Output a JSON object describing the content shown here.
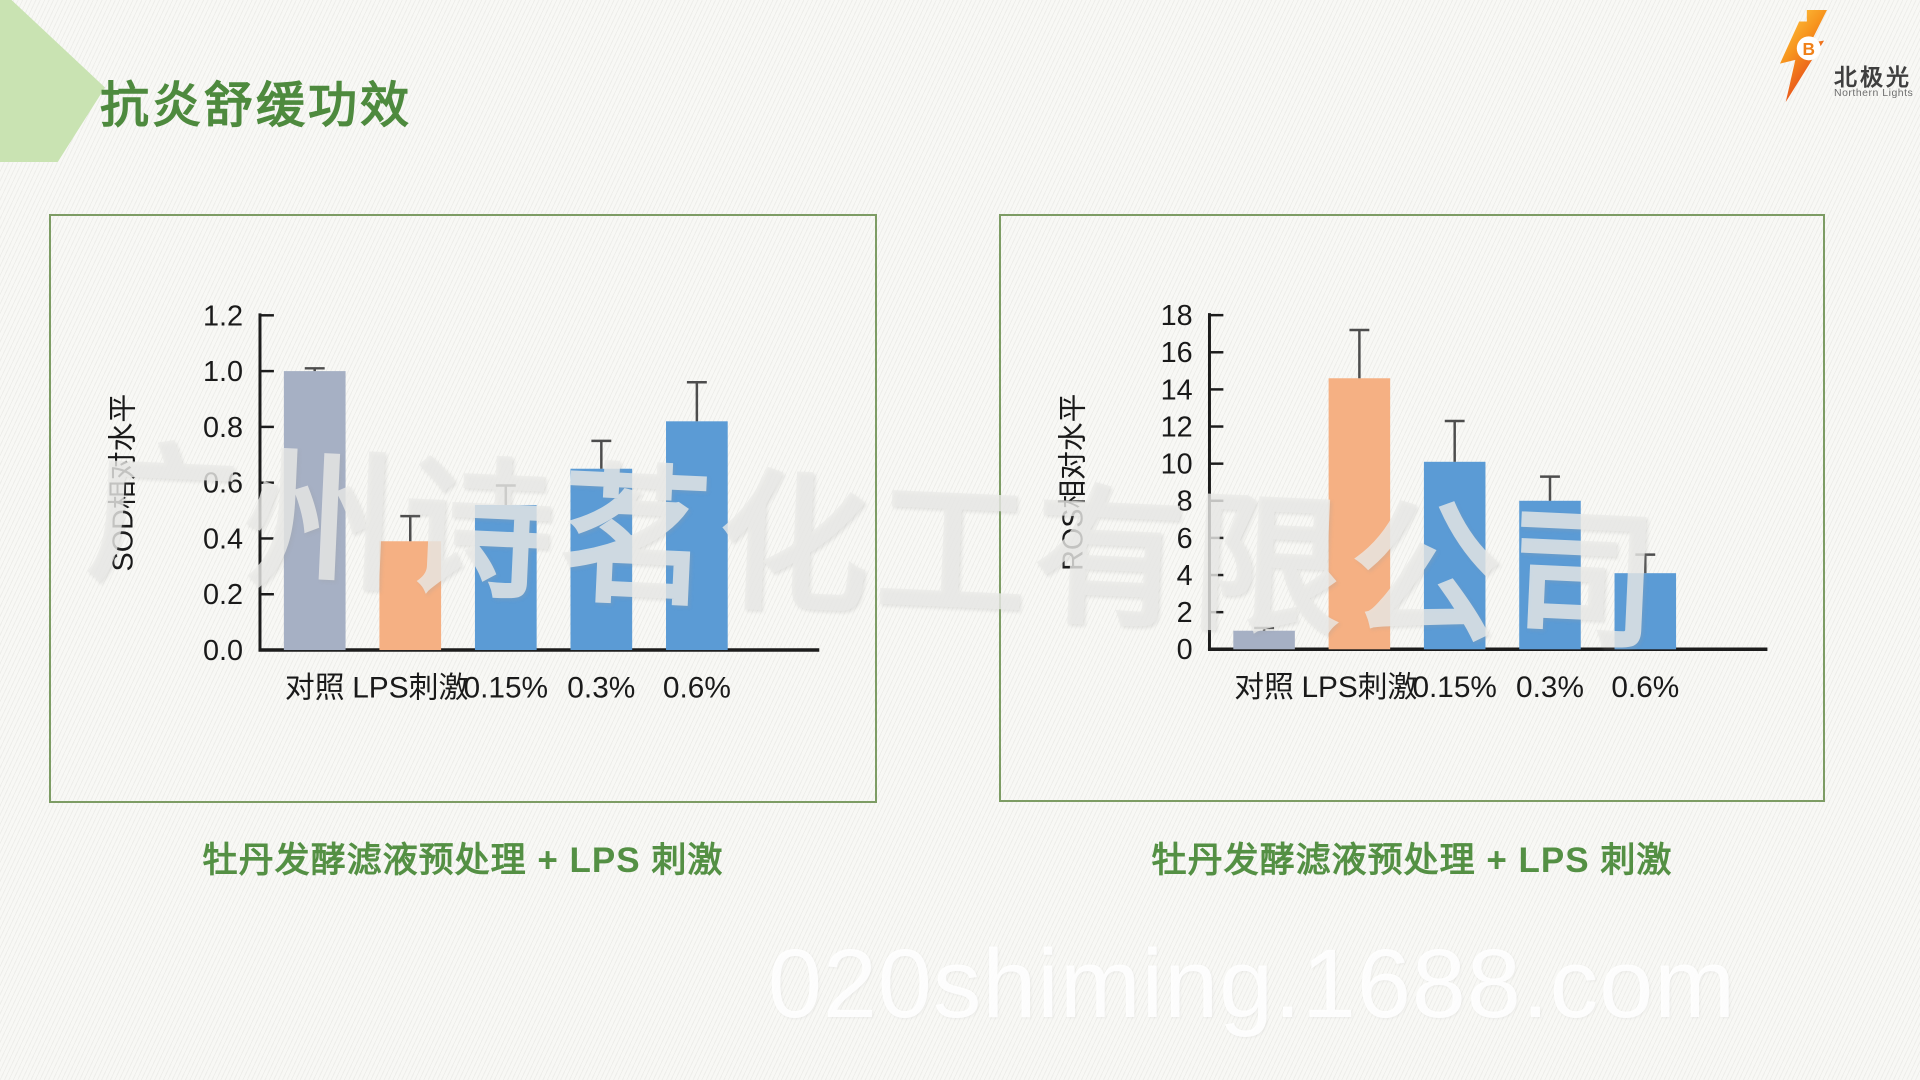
{
  "slide": {
    "title": "抗炎舒缓功效",
    "logo": {
      "brand_cn": "北极光",
      "brand_en": "Northern Lights",
      "bolt_letter": "B"
    },
    "watermarks": {
      "center": "广州诗茗化工有限公司",
      "bottom": "020shiming.1688.com"
    },
    "colors": {
      "title_green": "#4e8a3e",
      "caption_green": "#549044",
      "panel_border": "#7d9c64",
      "chevron": "#c9e3b2",
      "bar_gray": "#a6b0c4",
      "bar_orange": "#f5b083",
      "bar_blue": "#5b9bd5",
      "axis": "#1c1c1c",
      "error_bar": "#4d4d4d",
      "bolt_orange_top": "#ffd24a",
      "bolt_orange_mid": "#f7941d",
      "bolt_red_bottom": "#e2391b"
    }
  },
  "chart_data": [
    {
      "type": "bar",
      "title": "",
      "xlabel": "",
      "ylabel": "SOD相对水平",
      "categories": [
        "对照",
        "LPS刺激",
        "0.15%",
        "0.3%",
        "0.6%"
      ],
      "values": [
        1.0,
        0.39,
        0.52,
        0.65,
        0.82
      ],
      "errors": [
        0.01,
        0.09,
        0.07,
        0.1,
        0.14
      ],
      "bar_colors": [
        "#a6b0c4",
        "#f5b083",
        "#5b9bd5",
        "#5b9bd5",
        "#5b9bd5"
      ],
      "ylim": [
        0,
        1.2
      ],
      "ytick_step": 0.2,
      "ytick_labels": [
        "0.0",
        "0.2",
        "0.4",
        "0.6",
        "0.8",
        "1.0",
        "1.2"
      ],
      "grid": false,
      "legend": "none",
      "error_bars": "upper",
      "caption": "牡丹发酵滤液预处理 + LPS 刺激"
    },
    {
      "type": "bar",
      "title": "",
      "xlabel": "",
      "ylabel": "ROS相对水平",
      "categories": [
        "对照",
        "LPS刺激",
        "0.15%",
        "0.3%",
        "0.6%"
      ],
      "values": [
        1.0,
        14.6,
        10.1,
        8.0,
        4.1
      ],
      "errors": [
        0.15,
        2.6,
        2.2,
        1.3,
        1.0
      ],
      "bar_colors": [
        "#a6b0c4",
        "#f5b083",
        "#5b9bd5",
        "#5b9bd5",
        "#5b9bd5"
      ],
      "ylim": [
        0,
        18
      ],
      "ytick_step": 2,
      "ytick_labels": [
        "0",
        "2",
        "4",
        "6",
        "8",
        "10",
        "12",
        "14",
        "16",
        "18"
      ],
      "grid": false,
      "legend": "none",
      "error_bars": "upper",
      "caption": "牡丹发酵滤液预处理 + LPS 刺激"
    }
  ]
}
